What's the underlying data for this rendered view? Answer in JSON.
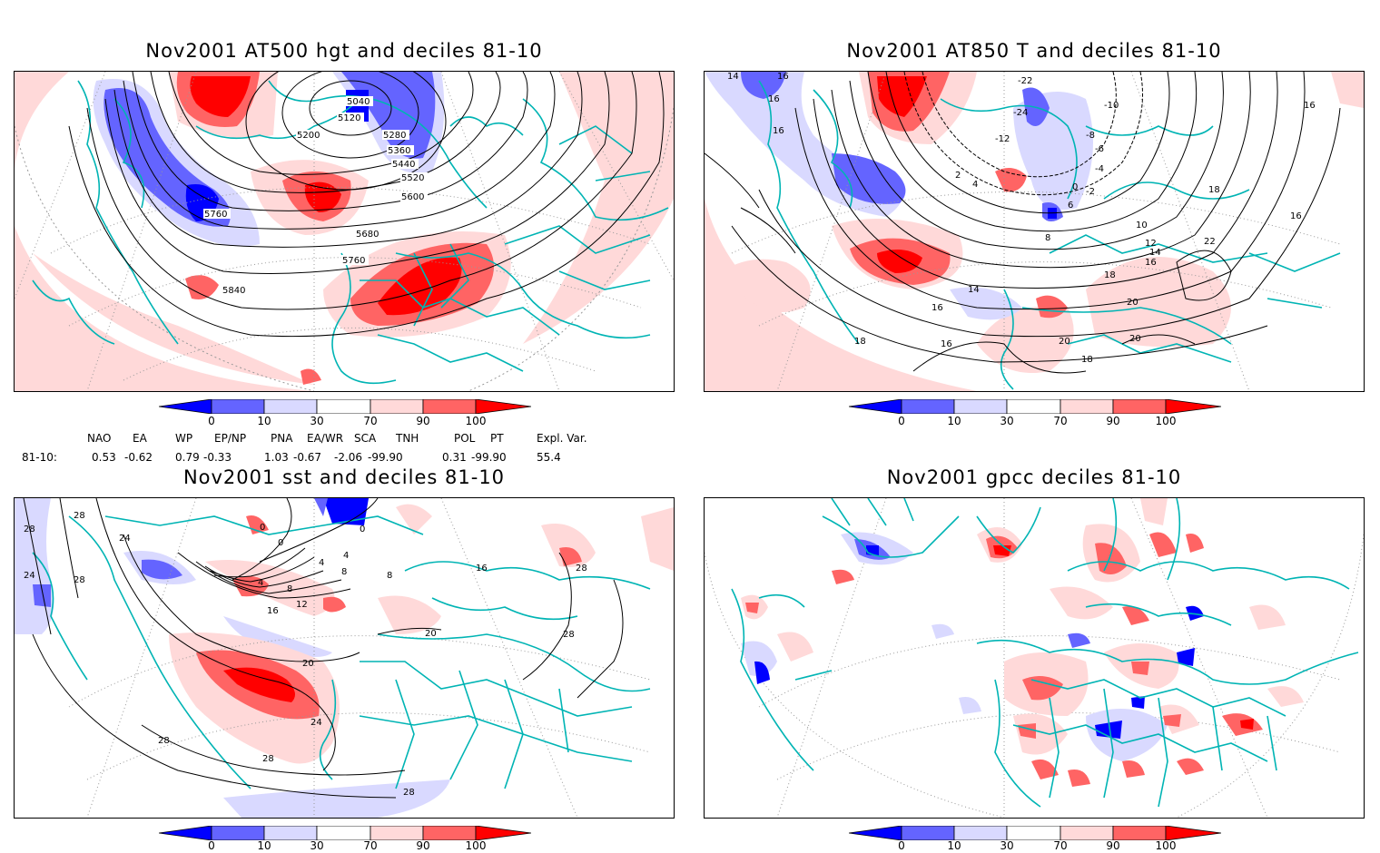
{
  "panels": [
    {
      "id": "p1",
      "title": "Nov2001 AT500 hgt and deciles 81-10",
      "contour_labels": [
        "5040",
        "5120",
        "5200",
        "5280",
        "5360",
        "5440",
        "5520",
        "5600",
        "5680",
        "5760",
        "5760",
        "5840"
      ]
    },
    {
      "id": "p2",
      "title": "Nov2001 AT850 T and deciles 81-10",
      "contour_labels": [
        "14",
        "16",
        "16",
        "16",
        "-22",
        "-10",
        "-24",
        "-8",
        "-6",
        "-4",
        "-2",
        "0",
        "2",
        "4",
        "-12",
        "6",
        "8",
        "10",
        "12",
        "14",
        "16",
        "18",
        "18",
        "16",
        "22",
        "20",
        "20",
        "20",
        "18",
        "16",
        "18",
        "16",
        "14",
        "16"
      ]
    },
    {
      "id": "p3",
      "title": "Nov2001 sst and deciles 81-10",
      "contour_labels": [
        "28",
        "28",
        "24",
        "24",
        "28",
        "0",
        "0",
        "0",
        "4",
        "4",
        "4",
        "8",
        "8",
        "8",
        "12",
        "16",
        "20",
        "20",
        "24",
        "28",
        "28",
        "28",
        "16",
        "28",
        "28"
      ]
    },
    {
      "id": "p4",
      "title": "Nov2001 gpcc deciles 81-10",
      "contour_labels": []
    }
  ],
  "colorbar": {
    "labels": [
      "0",
      "10",
      "30",
      "70",
      "90",
      "100"
    ],
    "colors": [
      "#0000ff",
      "#6464ff",
      "#d9d9ff",
      "#ffffff",
      "#ffd9d9",
      "#ff6464",
      "#ff0000"
    ]
  },
  "indices": {
    "row_label": "81-10:",
    "headers": [
      "NAO",
      "EA",
      "WP",
      "EP/NP",
      "PNA",
      "EA/WR",
      "SCA",
      "TNH",
      "POL",
      "PT",
      "Expl. Var."
    ],
    "values": [
      "0.53",
      "-0.62",
      "0.79",
      "-0.33",
      "1.03",
      "-0.67",
      "-2.06",
      "-99.90",
      "0.31",
      "-99.90",
      "55.4"
    ]
  },
  "map_colors": {
    "coast": "#00b4b4",
    "contour": "#000000",
    "grid": "#999999",
    "deep_blue": "#0000ff",
    "mid_blue": "#6464ff",
    "light_blue": "#d9d9ff",
    "light_red": "#ffd9d9",
    "mid_red": "#ff6464",
    "deep_red": "#ff0000"
  }
}
